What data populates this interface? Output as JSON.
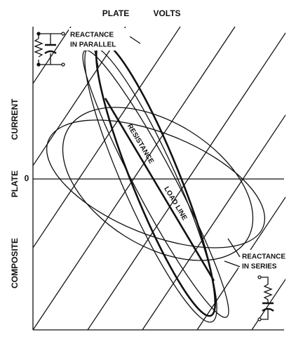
{
  "axis": {
    "x_label_words": [
      "PLATE",
      "VOLTS"
    ],
    "y_label_words": [
      "COMPOSITE",
      "PLATE",
      "CURRENT"
    ],
    "origin": "0"
  },
  "annotations": {
    "parallel": [
      "REACTANCE",
      "IN PARALLEL"
    ],
    "series": [
      "REACTANCE",
      "IN SERIES"
    ],
    "load_line": [
      "RESISTANCE",
      "LOAD LINE"
    ]
  }
}
